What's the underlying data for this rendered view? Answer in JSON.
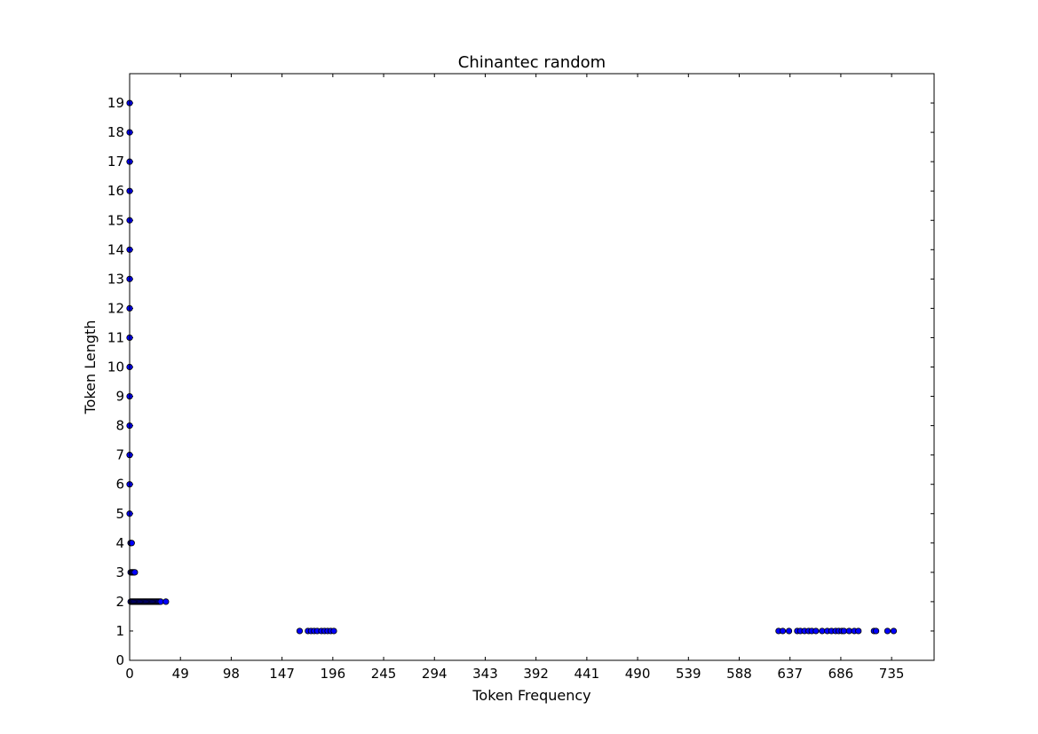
{
  "chart_data": {
    "type": "scatter",
    "title": "Chinantec random",
    "xlabel": "Token Frequency",
    "ylabel": "Token Length",
    "xlim": [
      0,
      776
    ],
    "ylim": [
      0,
      20
    ],
    "xticks": [
      0,
      49,
      98,
      147,
      196,
      245,
      294,
      343,
      392,
      441,
      490,
      539,
      588,
      637,
      686,
      735
    ],
    "yticks": [
      0,
      1,
      2,
      3,
      4,
      5,
      6,
      7,
      8,
      9,
      10,
      11,
      12,
      13,
      14,
      15,
      16,
      17,
      18,
      19
    ],
    "grid": false,
    "marker_color": "#0000ff",
    "marker_edge": "#000000",
    "series": [
      {
        "x": [
          0,
          0,
          0,
          0,
          0,
          0,
          0,
          0,
          0,
          0,
          0,
          0,
          0,
          0,
          0,
          1,
          1,
          2,
          1,
          2,
          3,
          4,
          5,
          1,
          2,
          3,
          4,
          5,
          6,
          7,
          8,
          9,
          10,
          11,
          12,
          13,
          14,
          15,
          16,
          17,
          18,
          19,
          20,
          21,
          22,
          23,
          24,
          25,
          26,
          27,
          28,
          29,
          30,
          35,
          164,
          172,
          175,
          178,
          181,
          185,
          188,
          191,
          194,
          197,
          626,
          630,
          636,
          644,
          647,
          651,
          655,
          658,
          662,
          668,
          673,
          677,
          681,
          684,
          687,
          689,
          694,
          699,
          703,
          718,
          720,
          731,
          737
        ],
        "y": [
          19,
          18,
          17,
          16,
          15,
          14,
          13,
          12,
          11,
          10,
          9,
          8,
          7,
          6,
          5,
          4,
          4,
          4,
          3,
          3,
          3,
          3,
          3,
          2,
          2,
          2,
          2,
          2,
          2,
          2,
          2,
          2,
          2,
          2,
          2,
          2,
          2,
          2,
          2,
          2,
          2,
          2,
          2,
          2,
          2,
          2,
          2,
          2,
          2,
          2,
          2,
          2,
          2,
          2,
          1,
          1,
          1,
          1,
          1,
          1,
          1,
          1,
          1,
          1,
          1,
          1,
          1,
          1,
          1,
          1,
          1,
          1,
          1,
          1,
          1,
          1,
          1,
          1,
          1,
          1,
          1,
          1,
          1,
          1,
          1,
          1,
          1
        ]
      }
    ]
  }
}
